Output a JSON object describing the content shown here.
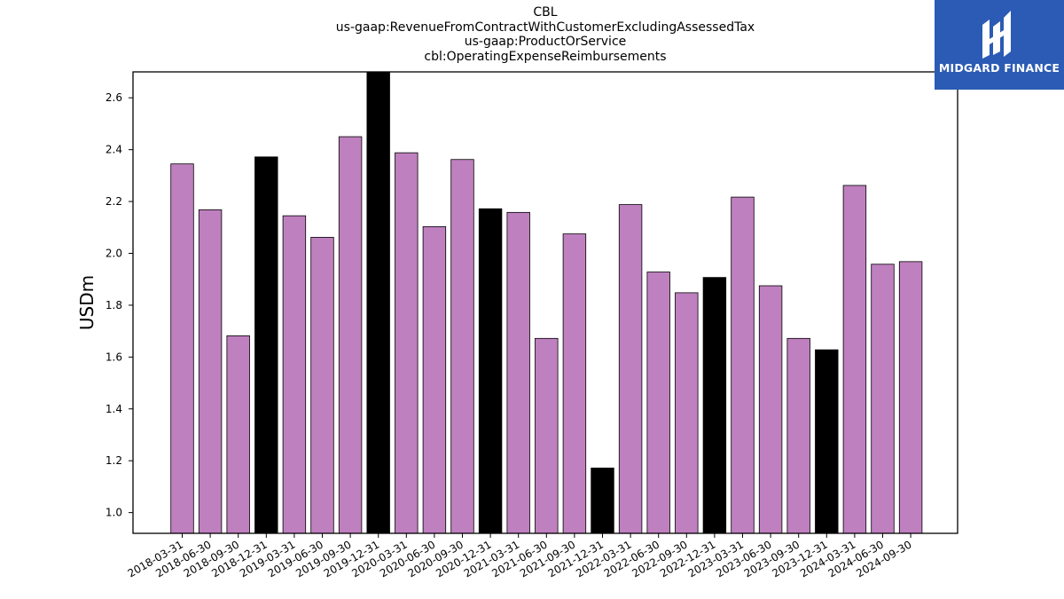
{
  "chart_data": {
    "type": "bar",
    "title_lines": [
      "CBL",
      "us-gaap:RevenueFromContractWithCustomerExcludingAssessedTax",
      "us-gaap:ProductOrService",
      "cbl:OperatingExpenseReimbursements"
    ],
    "xlabel": "",
    "ylabel": "USDm",
    "ylim": [
      0.92,
      2.7
    ],
    "yticks": [
      "1.0",
      "1.2",
      "1.4",
      "1.6",
      "1.8",
      "2.0",
      "2.2",
      "2.4",
      "2.6"
    ],
    "grid": false,
    "categories": [
      "2018-03-31",
      "2018-06-30",
      "2018-09-30",
      "2018-12-31",
      "2019-03-31",
      "2019-06-30",
      "2019-09-30",
      "2019-12-31",
      "2020-03-31",
      "2020-06-30",
      "2020-09-30",
      "2020-12-31",
      "2021-03-31",
      "2021-06-30",
      "2021-09-30",
      "2021-12-31",
      "2022-03-31",
      "2022-06-30",
      "2022-09-30",
      "2022-12-31",
      "2023-03-31",
      "2023-06-30",
      "2023-09-30",
      "2023-12-31",
      "2024-03-31",
      "2024-06-30",
      "2024-09-30"
    ],
    "values": [
      2.345,
      2.168,
      1.682,
      2.372,
      2.145,
      2.062,
      2.45,
      2.7,
      2.388,
      2.103,
      2.362,
      2.172,
      2.158,
      1.672,
      2.075,
      1.172,
      2.188,
      1.928,
      1.848,
      1.907,
      2.217,
      1.875,
      1.672,
      1.628,
      2.262,
      1.958,
      1.968
    ],
    "colors": {
      "quarter": "#bf80bf",
      "year_end": "#000000",
      "edge": "#000000"
    }
  },
  "logo": {
    "text": "MIDGARD FINANCE",
    "icon": "midgard-logo-icon",
    "background": "#2b5bb4"
  }
}
